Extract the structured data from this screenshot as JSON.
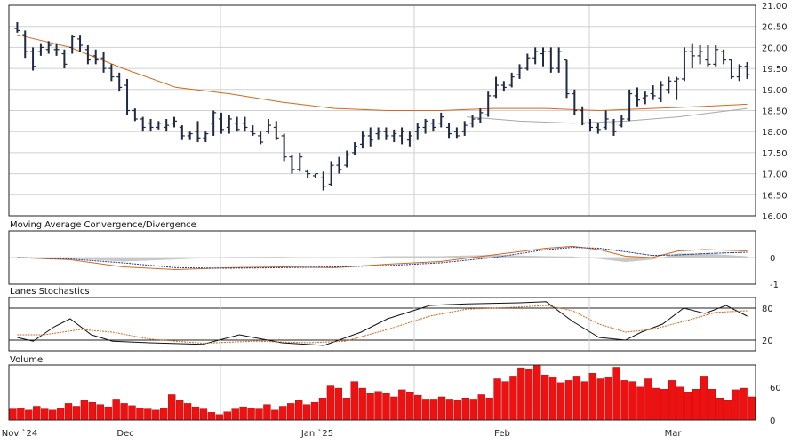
{
  "chart_data": [
    {
      "type": "ohlc",
      "panel": "price",
      "title": "",
      "yticks": [
        "21.00",
        "20.50",
        "20.00",
        "19.50",
        "19.00",
        "18.50",
        "18.00",
        "17.50",
        "17.00",
        "16.50",
        "16.00"
      ],
      "ylim": [
        16.0,
        21.0
      ],
      "bar_values": [
        {
          "o": 20.45,
          "h": 20.6,
          "l": 20.35,
          "c": 20.4
        },
        {
          "o": 20.3,
          "h": 20.4,
          "l": 19.75,
          "c": 19.9
        },
        {
          "o": 19.9,
          "h": 20.0,
          "l": 19.45,
          "c": 19.55
        },
        {
          "o": 19.9,
          "h": 20.1,
          "l": 19.8,
          "c": 20.0
        },
        {
          "o": 19.95,
          "h": 20.15,
          "l": 19.85,
          "c": 20.05
        },
        {
          "o": 19.95,
          "h": 20.1,
          "l": 19.8,
          "c": 19.95
        },
        {
          "o": 19.85,
          "h": 19.95,
          "l": 19.5,
          "c": 19.6
        },
        {
          "o": 20.0,
          "h": 20.3,
          "l": 19.85,
          "c": 20.25
        },
        {
          "o": 20.2,
          "h": 20.3,
          "l": 19.9,
          "c": 20.05
        },
        {
          "o": 19.95,
          "h": 20.05,
          "l": 19.6,
          "c": 19.7
        },
        {
          "o": 19.8,
          "h": 19.95,
          "l": 19.6,
          "c": 19.7
        },
        {
          "o": 19.75,
          "h": 19.9,
          "l": 19.4,
          "c": 19.5
        },
        {
          "o": 19.5,
          "h": 19.6,
          "l": 19.2,
          "c": 19.3
        },
        {
          "o": 19.3,
          "h": 19.4,
          "l": 18.95,
          "c": 19.05
        },
        {
          "o": 19.1,
          "h": 19.25,
          "l": 18.4,
          "c": 18.5
        },
        {
          "o": 18.5,
          "h": 18.55,
          "l": 18.25,
          "c": 18.3
        },
        {
          "o": 18.3,
          "h": 18.35,
          "l": 18.0,
          "c": 18.1
        },
        {
          "o": 18.2,
          "h": 18.3,
          "l": 18.0,
          "c": 18.1
        },
        {
          "o": 18.1,
          "h": 18.25,
          "l": 18.05,
          "c": 18.2
        },
        {
          "o": 18.1,
          "h": 18.3,
          "l": 18.0,
          "c": 18.15
        },
        {
          "o": 18.2,
          "h": 18.35,
          "l": 18.1,
          "c": 18.25
        },
        {
          "o": 18.1,
          "h": 18.15,
          "l": 17.8,
          "c": 17.9
        },
        {
          "o": 17.9,
          "h": 18.0,
          "l": 17.8,
          "c": 17.95
        },
        {
          "o": 18.0,
          "h": 18.25,
          "l": 17.75,
          "c": 17.85
        },
        {
          "o": 17.85,
          "h": 18.0,
          "l": 17.75,
          "c": 17.95
        },
        {
          "o": 18.2,
          "h": 18.5,
          "l": 17.9,
          "c": 18.45
        },
        {
          "o": 18.3,
          "h": 18.45,
          "l": 17.95,
          "c": 18.05
        },
        {
          "o": 18.1,
          "h": 18.4,
          "l": 17.95,
          "c": 18.3
        },
        {
          "o": 18.2,
          "h": 18.35,
          "l": 18.0,
          "c": 18.05
        },
        {
          "o": 18.2,
          "h": 18.35,
          "l": 18.0,
          "c": 18.1
        },
        {
          "o": 18.0,
          "h": 18.15,
          "l": 17.9,
          "c": 17.95
        },
        {
          "o": 17.9,
          "h": 18.0,
          "l": 17.7,
          "c": 17.75
        },
        {
          "o": 18.0,
          "h": 18.3,
          "l": 17.95,
          "c": 18.15
        },
        {
          "o": 18.1,
          "h": 18.25,
          "l": 17.8,
          "c": 17.85
        },
        {
          "o": 17.9,
          "h": 17.95,
          "l": 17.3,
          "c": 17.4
        },
        {
          "o": 17.4,
          "h": 17.45,
          "l": 17.0,
          "c": 17.1
        },
        {
          "o": 17.1,
          "h": 17.5,
          "l": 17.05,
          "c": 17.4
        },
        {
          "o": 17.05,
          "h": 17.1,
          "l": 16.9,
          "c": 17.0
        },
        {
          "o": 16.95,
          "h": 17.0,
          "l": 16.9,
          "c": 17.0
        },
        {
          "o": 16.9,
          "h": 17.05,
          "l": 16.6,
          "c": 16.7
        },
        {
          "o": 16.75,
          "h": 17.3,
          "l": 16.7,
          "c": 17.2
        },
        {
          "o": 17.2,
          "h": 17.4,
          "l": 17.0,
          "c": 17.1
        },
        {
          "o": 17.2,
          "h": 17.55,
          "l": 17.15,
          "c": 17.45
        },
        {
          "o": 17.5,
          "h": 17.75,
          "l": 17.45,
          "c": 17.65
        },
        {
          "o": 17.7,
          "h": 18.0,
          "l": 17.6,
          "c": 17.9
        },
        {
          "o": 17.9,
          "h": 18.1,
          "l": 17.65,
          "c": 17.8
        },
        {
          "o": 17.95,
          "h": 18.1,
          "l": 17.8,
          "c": 18.0
        },
        {
          "o": 18.0,
          "h": 18.1,
          "l": 17.8,
          "c": 17.9
        },
        {
          "o": 17.9,
          "h": 18.05,
          "l": 17.75,
          "c": 17.95
        },
        {
          "o": 17.9,
          "h": 18.1,
          "l": 17.7,
          "c": 18.0
        },
        {
          "o": 17.8,
          "h": 18.0,
          "l": 17.65,
          "c": 17.9
        },
        {
          "o": 18.0,
          "h": 18.2,
          "l": 17.8,
          "c": 18.1
        },
        {
          "o": 18.1,
          "h": 18.3,
          "l": 17.95,
          "c": 18.25
        },
        {
          "o": 18.2,
          "h": 18.3,
          "l": 18.0,
          "c": 18.1
        },
        {
          "o": 18.2,
          "h": 18.45,
          "l": 18.1,
          "c": 18.35
        },
        {
          "o": 18.1,
          "h": 18.2,
          "l": 17.85,
          "c": 17.95
        },
        {
          "o": 18.0,
          "h": 18.1,
          "l": 17.85,
          "c": 17.9
        },
        {
          "o": 18.0,
          "h": 18.25,
          "l": 17.9,
          "c": 18.15
        },
        {
          "o": 18.2,
          "h": 18.4,
          "l": 18.1,
          "c": 18.3
        },
        {
          "o": 18.3,
          "h": 18.55,
          "l": 18.2,
          "c": 18.45
        },
        {
          "o": 18.4,
          "h": 18.95,
          "l": 18.35,
          "c": 18.85
        },
        {
          "o": 18.85,
          "h": 19.3,
          "l": 18.8,
          "c": 19.1
        },
        {
          "o": 19.1,
          "h": 19.2,
          "l": 18.95,
          "c": 19.05
        },
        {
          "o": 19.1,
          "h": 19.4,
          "l": 19.05,
          "c": 19.3
        },
        {
          "o": 19.35,
          "h": 19.6,
          "l": 19.25,
          "c": 19.5
        },
        {
          "o": 19.5,
          "h": 19.85,
          "l": 19.45,
          "c": 19.75
        },
        {
          "o": 19.75,
          "h": 20.0,
          "l": 19.6,
          "c": 19.9
        },
        {
          "o": 19.85,
          "h": 20.0,
          "l": 19.55,
          "c": 19.9
        },
        {
          "o": 19.9,
          "h": 20.0,
          "l": 19.4,
          "c": 19.5
        },
        {
          "o": 19.5,
          "h": 20.0,
          "l": 19.4,
          "c": 19.9
        },
        {
          "o": 19.7,
          "h": 19.7,
          "l": 18.8,
          "c": 18.9
        },
        {
          "o": 18.9,
          "h": 19.0,
          "l": 18.4,
          "c": 18.5
        },
        {
          "o": 18.5,
          "h": 18.6,
          "l": 18.15,
          "c": 18.2
        },
        {
          "o": 18.2,
          "h": 18.3,
          "l": 18.0,
          "c": 18.1
        },
        {
          "o": 18.1,
          "h": 18.2,
          "l": 17.95,
          "c": 18.05
        },
        {
          "o": 18.1,
          "h": 18.5,
          "l": 18.05,
          "c": 18.3
        },
        {
          "o": 18.2,
          "h": 18.3,
          "l": 17.9,
          "c": 18.0
        },
        {
          "o": 18.15,
          "h": 18.4,
          "l": 18.1,
          "c": 18.3
        },
        {
          "o": 18.3,
          "h": 19.0,
          "l": 18.25,
          "c": 18.9
        },
        {
          "o": 18.85,
          "h": 19.05,
          "l": 18.6,
          "c": 18.75
        },
        {
          "o": 18.8,
          "h": 18.95,
          "l": 18.65,
          "c": 18.85
        },
        {
          "o": 18.9,
          "h": 19.1,
          "l": 18.75,
          "c": 18.85
        },
        {
          "o": 18.8,
          "h": 19.2,
          "l": 18.7,
          "c": 19.1
        },
        {
          "o": 19.0,
          "h": 19.3,
          "l": 18.9,
          "c": 19.2
        },
        {
          "o": 19.2,
          "h": 19.3,
          "l": 18.75,
          "c": 19.25
        },
        {
          "o": 19.25,
          "h": 20.0,
          "l": 19.2,
          "c": 19.9
        },
        {
          "o": 19.9,
          "h": 20.1,
          "l": 19.5,
          "c": 19.8
        },
        {
          "o": 19.8,
          "h": 20.05,
          "l": 19.6,
          "c": 19.9
        },
        {
          "o": 19.7,
          "h": 20.05,
          "l": 19.55,
          "c": 19.6
        },
        {
          "o": 19.6,
          "h": 20.05,
          "l": 19.55,
          "c": 19.95
        },
        {
          "o": 19.9,
          "h": 19.95,
          "l": 19.6,
          "c": 19.7
        },
        {
          "o": 19.7,
          "h": 19.7,
          "l": 19.25,
          "c": 19.3
        },
        {
          "o": 19.3,
          "h": 19.6,
          "l": 19.2,
          "c": 19.55
        },
        {
          "o": 19.55,
          "h": 19.65,
          "l": 19.25,
          "c": 19.35
        }
      ],
      "moving_averages": [
        {
          "color": "#d2691e",
          "values": [
            [
              0,
              20.3
            ],
            [
              10,
              20.0
            ],
            [
              20,
              19.5
            ],
            [
              30,
              19.05
            ],
            [
              40,
              18.9
            ],
            [
              50,
              18.7
            ],
            [
              60,
              18.55
            ],
            [
              70,
              18.5
            ],
            [
              80,
              18.5
            ],
            [
              90,
              18.55
            ],
            [
              100,
              18.55
            ],
            [
              110,
              18.5
            ],
            [
              120,
              18.55
            ],
            [
              130,
              18.6
            ],
            [
              138,
              18.65
            ]
          ]
        },
        {
          "color": "#a8a8a8",
          "values": [
            [
              85,
              18.35
            ],
            [
              95,
              18.25
            ],
            [
              105,
              18.2
            ],
            [
              115,
              18.25
            ],
            [
              125,
              18.35
            ],
            [
              138,
              18.55
            ]
          ]
        }
      ]
    },
    {
      "type": "line",
      "panel": "macd",
      "title": "Moving Average Convergence/Divergence",
      "yticks": [
        "0",
        "-1"
      ],
      "ylim": [
        -1,
        1
      ],
      "series": [
        {
          "color": "#d2691e",
          "values": [
            [
              0,
              0.0
            ],
            [
              10,
              -0.08
            ],
            [
              20,
              -0.35
            ],
            [
              30,
              -0.45
            ],
            [
              40,
              -0.38
            ],
            [
              50,
              -0.35
            ],
            [
              60,
              -0.38
            ],
            [
              70,
              -0.25
            ],
            [
              80,
              -0.15
            ],
            [
              90,
              0.1
            ],
            [
              100,
              0.35
            ],
            [
              105,
              0.42
            ],
            [
              110,
              0.3
            ],
            [
              115,
              0.05
            ],
            [
              120,
              0.0
            ],
            [
              125,
              0.25
            ],
            [
              130,
              0.3
            ],
            [
              138,
              0.25
            ]
          ]
        },
        {
          "color": "#1e3a8a",
          "values": [
            [
              0,
              0.0
            ],
            [
              10,
              -0.05
            ],
            [
              20,
              -0.2
            ],
            [
              30,
              -0.38
            ],
            [
              40,
              -0.4
            ],
            [
              50,
              -0.38
            ],
            [
              60,
              -0.35
            ],
            [
              70,
              -0.3
            ],
            [
              80,
              -0.2
            ],
            [
              90,
              0.0
            ],
            [
              100,
              0.3
            ],
            [
              105,
              0.38
            ],
            [
              110,
              0.35
            ],
            [
              115,
              0.22
            ],
            [
              120,
              0.08
            ],
            [
              125,
              0.1
            ],
            [
              130,
              0.15
            ],
            [
              138,
              0.2
            ]
          ]
        }
      ]
    },
    {
      "type": "line",
      "panel": "stochastics",
      "title": "Lanes Stochastics",
      "yticks": [
        "80",
        "20"
      ],
      "ylim": [
        0,
        100
      ],
      "series": [
        {
          "color": "#111111",
          "values": [
            [
              0,
              25
            ],
            [
              3,
              18
            ],
            [
              7,
              45
            ],
            [
              10,
              60
            ],
            [
              14,
              30
            ],
            [
              18,
              18
            ],
            [
              25,
              15
            ],
            [
              35,
              12
            ],
            [
              42,
              30
            ],
            [
              50,
              15
            ],
            [
              58,
              10
            ],
            [
              65,
              35
            ],
            [
              70,
              60
            ],
            [
              78,
              85
            ],
            [
              85,
              88
            ],
            [
              95,
              90
            ],
            [
              100,
              92
            ],
            [
              105,
              55
            ],
            [
              110,
              25
            ],
            [
              115,
              20
            ],
            [
              118,
              35
            ],
            [
              122,
              50
            ],
            [
              126,
              80
            ],
            [
              130,
              70
            ],
            [
              134,
              85
            ],
            [
              138,
              65
            ]
          ]
        },
        {
          "color": "#d2691e",
          "values": [
            [
              0,
              30
            ],
            [
              5,
              30
            ],
            [
              12,
              40
            ],
            [
              18,
              35
            ],
            [
              25,
              22
            ],
            [
              35,
              14
            ],
            [
              45,
              18
            ],
            [
              55,
              15
            ],
            [
              62,
              18
            ],
            [
              70,
              40
            ],
            [
              78,
              65
            ],
            [
              85,
              78
            ],
            [
              95,
              82
            ],
            [
              100,
              85
            ],
            [
              105,
              75
            ],
            [
              110,
              50
            ],
            [
              115,
              35
            ],
            [
              120,
              40
            ],
            [
              126,
              55
            ],
            [
              132,
              72
            ],
            [
              138,
              75
            ]
          ]
        }
      ]
    },
    {
      "type": "bar",
      "panel": "volume",
      "title": "Volume",
      "yticks": [
        "60",
        "0"
      ],
      "ylim": [
        0,
        100
      ],
      "values": [
        20,
        22,
        18,
        25,
        20,
        18,
        22,
        30,
        25,
        35,
        32,
        28,
        24,
        38,
        30,
        26,
        22,
        20,
        18,
        22,
        46,
        35,
        30,
        24,
        20,
        14,
        10,
        15,
        20,
        24,
        22,
        20,
        28,
        18,
        25,
        30,
        35,
        28,
        32,
        40,
        62,
        58,
        40,
        70,
        58,
        48,
        52,
        48,
        42,
        55,
        50,
        45,
        38,
        38,
        42,
        38,
        35,
        40,
        38,
        46,
        40,
        75,
        70,
        80,
        95,
        92,
        100,
        82,
        78,
        68,
        72,
        80,
        70,
        85,
        75,
        78,
        96,
        72,
        70,
        60,
        75,
        58,
        56,
        72,
        60,
        50,
        56,
        80,
        56,
        40,
        35,
        55,
        58,
        42
      ]
    },
    {
      "type": "axis",
      "xlabels": [
        "Nov `24",
        "Dec",
        "Jan `25",
        "Feb",
        "Mar"
      ]
    }
  ]
}
